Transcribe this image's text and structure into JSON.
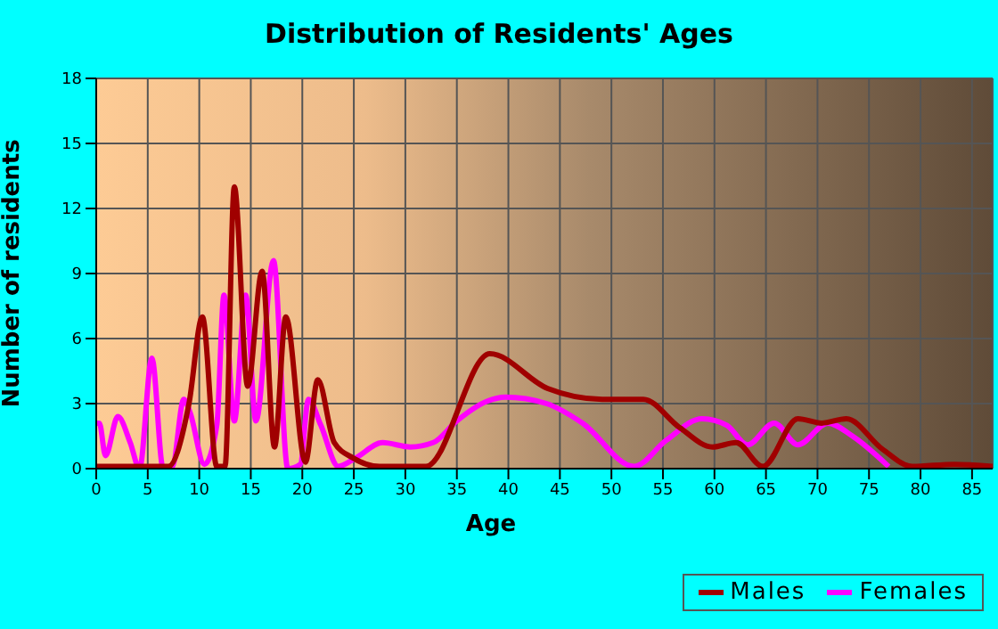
{
  "chart_data": {
    "type": "line",
    "title": "Distribution of Residents' Ages",
    "xlabel": "Age",
    "ylabel": "Number of residents",
    "xlim": [
      0,
      87
    ],
    "xticks": [
      0,
      5,
      10,
      15,
      20,
      25,
      30,
      35,
      40,
      45,
      50,
      55,
      60,
      65,
      70,
      75,
      80,
      85
    ],
    "ylim": [
      0,
      18
    ],
    "yticks": [
      0,
      3,
      6,
      9,
      12,
      15,
      18
    ],
    "grid": true,
    "legend": "bottom right",
    "marker": "none",
    "line_style": "solid",
    "series": [
      {
        "name": "Males",
        "color": "#a00000",
        "x": [
          0,
          5,
          7,
          9,
          10.3,
          11.7,
          12.5,
          13.4,
          14.7,
          16.1,
          17.3,
          18.4,
          20.3,
          21.5,
          23.1,
          24.9,
          27.5,
          32,
          38.2,
          43.8,
          49.1,
          53.1,
          56.6,
          59.8,
          62.1,
          64.7,
          68.1,
          70.4,
          72.8,
          76.3,
          79.2,
          83.3,
          87
        ],
        "values": [
          0.1,
          0.1,
          0.1,
          3,
          7,
          0.1,
          0.1,
          13,
          3.8,
          9.1,
          1,
          7,
          0.3,
          4.1,
          1.2,
          0.5,
          0.1,
          0.1,
          5.3,
          3.7,
          3.2,
          3.2,
          1.9,
          1,
          1.2,
          0.1,
          2.3,
          2.1,
          2.3,
          0.9,
          0.1,
          0.2,
          0.1
        ]
      },
      {
        "name": "Females",
        "color": "#ff00ff",
        "x": [
          0,
          0.3,
          0.9,
          2.1,
          3.3,
          4.2,
          5.4,
          6.5,
          7.4,
          8.5,
          9.1,
          10.5,
          11.7,
          12.4,
          13.4,
          14.5,
          15.5,
          17.2,
          18.6,
          19.8,
          20.6,
          21.8,
          23.5,
          25.2,
          27.8,
          30.5,
          32.7,
          35,
          37.9,
          39.7,
          43.7,
          47.2,
          52.2,
          55.3,
          58.8,
          61.2,
          63.2,
          65.8,
          68.1,
          71,
          73.4,
          76.9
        ],
        "values": [
          2.1,
          2.1,
          0.6,
          2.4,
          1.2,
          0,
          5.1,
          0,
          0.1,
          3.2,
          2.6,
          0.2,
          2,
          8,
          2.2,
          8,
          2.2,
          9.6,
          0,
          0.2,
          3.2,
          2,
          0.1,
          0.5,
          1.2,
          1,
          1.2,
          2.2,
          3.1,
          3.3,
          3,
          2.1,
          0.1,
          1.3,
          2.3,
          2,
          1.1,
          2.1,
          1.1,
          2.1,
          1.5,
          0.1
        ]
      }
    ]
  }
}
